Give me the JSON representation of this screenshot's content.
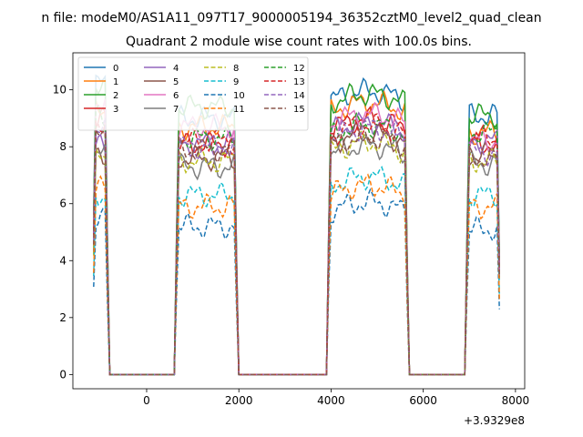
{
  "figure": {
    "suptitle": "n file: modeM0/AS1A11_097T17_9000005194_36352cztM0_level2_quad_clean",
    "title": "Quadrant 2 module wise count rates with 100.0s bins.",
    "offset_text": "+3.9329e8"
  },
  "chart_data": {
    "type": "line",
    "title": "Quadrant 2 module wise count rates with 100.0s bins.",
    "xlabel": "",
    "ylabel": "",
    "xlim": [
      -1600,
      8200
    ],
    "ylim": [
      -0.5,
      11.3
    ],
    "x_offset": 393290000,
    "xticks": [
      0,
      2000,
      4000,
      6000,
      8000
    ],
    "yticks": [
      0,
      2,
      4,
      6,
      8,
      10
    ],
    "legend_position": "top-left",
    "legend_columns": 4,
    "segments": [
      [
        -1150,
        -850
      ],
      [
        650,
        1950
      ],
      [
        3950,
        5650
      ],
      [
        6950,
        7650
      ]
    ],
    "series": [
      {
        "name": "0",
        "color": "#1f77b4",
        "style": "solid",
        "levels": [
          10.2,
          9.0,
          9.6,
          9.1
        ]
      },
      {
        "name": "1",
        "color": "#ff7f0e",
        "style": "solid",
        "levels": [
          9.3,
          8.7,
          9.2,
          8.5
        ]
      },
      {
        "name": "2",
        "color": "#2ca02c",
        "style": "solid",
        "levels": [
          10.3,
          9.4,
          9.5,
          9.1
        ]
      },
      {
        "name": "3",
        "color": "#d62728",
        "style": "solid",
        "levels": [
          9.0,
          8.1,
          8.6,
          8.1
        ]
      },
      {
        "name": "4",
        "color": "#9467bd",
        "style": "solid",
        "levels": [
          8.0,
          8.1,
          8.5,
          8.2
        ]
      },
      {
        "name": "5",
        "color": "#8c564b",
        "style": "solid",
        "levels": [
          7.8,
          7.6,
          8.1,
          7.7
        ]
      },
      {
        "name": "6",
        "color": "#e377c2",
        "style": "solid",
        "levels": [
          9.6,
          8.7,
          8.8,
          8.2
        ]
      },
      {
        "name": "7",
        "color": "#7f7f7f",
        "style": "solid",
        "levels": [
          7.7,
          7.3,
          7.7,
          7.4
        ]
      },
      {
        "name": "8",
        "color": "#bcbd22",
        "style": "dashed",
        "levels": [
          7.6,
          7.5,
          7.8,
          7.5
        ]
      },
      {
        "name": "9",
        "color": "#17becf",
        "style": "dashed",
        "levels": [
          6.3,
          6.3,
          6.6,
          6.3
        ]
      },
      {
        "name": "10",
        "color": "#1f77b4",
        "style": "dashed",
        "levels": [
          5.6,
          5.2,
          5.7,
          5.1
        ]
      },
      {
        "name": "11",
        "color": "#ff7f0e",
        "style": "dashed",
        "levels": [
          6.5,
          5.9,
          6.3,
          5.9
        ]
      },
      {
        "name": "12",
        "color": "#2ca02c",
        "style": "dashed",
        "levels": [
          9.1,
          8.3,
          8.4,
          8.5
        ]
      },
      {
        "name": "13",
        "color": "#d62728",
        "style": "dashed",
        "levels": [
          8.9,
          8.2,
          8.4,
          8.3
        ]
      },
      {
        "name": "14",
        "color": "#9467bd",
        "style": "dashed",
        "levels": [
          8.6,
          8.0,
          8.3,
          7.8
        ]
      },
      {
        "name": "15",
        "color": "#8c564b",
        "style": "dashed",
        "levels": [
          8.3,
          7.9,
          8.0,
          7.6
        ]
      }
    ]
  }
}
